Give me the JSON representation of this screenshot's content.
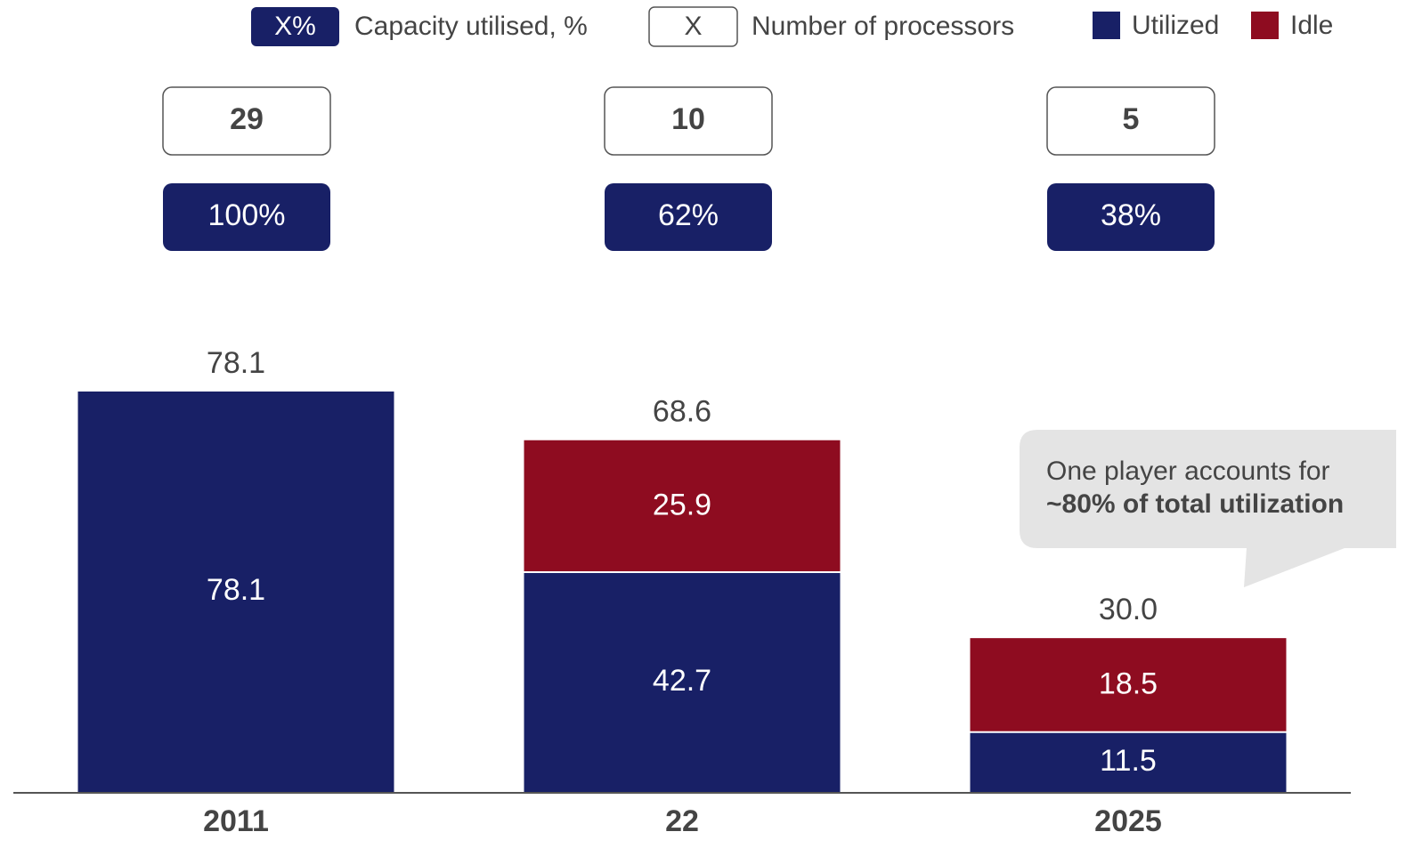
{
  "chart_data": {
    "type": "stacked_bar",
    "categories": [
      "2011",
      "22",
      "2025"
    ],
    "series": [
      {
        "name": "Utilized",
        "color": "#182066",
        "values": [
          78.1,
          42.7,
          11.5
        ]
      },
      {
        "name": "Idle",
        "color": "#8e0c20",
        "values": [
          null,
          25.9,
          18.5
        ]
      }
    ],
    "totals": {
      "values": [
        78.1,
        68.6,
        30
      ],
      "value_labels": [
        "78.1",
        "68.6",
        "30.0"
      ]
    },
    "processors": {
      "legend_symbol": "X",
      "legend_label": "Number of processors",
      "values": [
        29,
        10,
        5
      ]
    },
    "capacity_utilised": {
      "legend_symbol": "X%",
      "legend_label": "Capacity utilised, %",
      "values": [
        100,
        62,
        38
      ],
      "value_labels": [
        "100%",
        "62%",
        "38%"
      ]
    },
    "annotation": {
      "line1": "One player accounts for",
      "line2": "~80% of total utilization"
    }
  }
}
